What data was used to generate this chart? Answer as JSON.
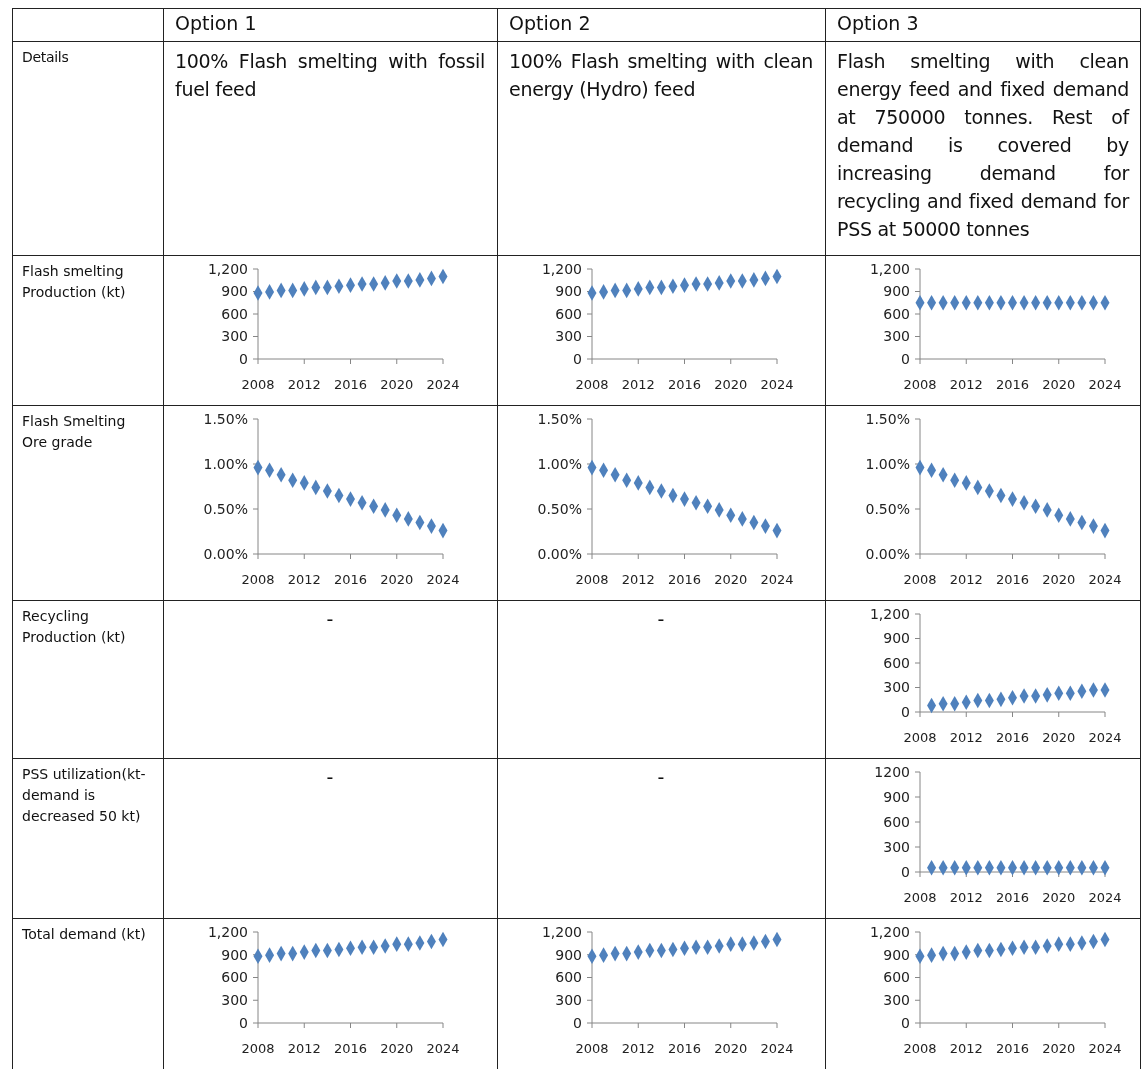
{
  "chart_data": [
    {
      "type": "other",
      "title": "Option 1"
    },
    {
      "type": "other",
      "title": "Option 2"
    },
    {
      "type": "other",
      "title": "Option 3"
    },
    {
      "type": "other",
      "title": "Details"
    },
    {
      "type": "other",
      "title": "100% Flash smelting with fossil fuel feed"
    },
    {
      "type": "other",
      "title": "100% Flash smelting with clean energy (Hydro) feed"
    },
    {
      "type": "other",
      "title": "Flash smelting with clean energy feed and fixed demand at 750000 tonnes. Rest of demand is covered by increasing demand for recycling and fixed demand for PSS at 50000 tonnes"
    },
    {
      "type": "other",
      "title": "Flash smelting Production (kt)"
    },
    {
      "type": "scatter",
      "x": [
        2008,
        2009,
        2010,
        2011,
        2012,
        2013,
        2014,
        2015,
        2016,
        2017,
        2018,
        2019,
        2020,
        2021,
        2022,
        2023,
        2024
      ],
      "values": [
        880,
        895,
        915,
        915,
        935,
        955,
        955,
        970,
        985,
        1000,
        1000,
        1015,
        1040,
        1040,
        1055,
        1075,
        1100
      ],
      "color": "#4f81bd",
      "marker": "diamond",
      "xlim": [
        2008,
        2024
      ],
      "xticks": [
        2008,
        2012,
        2016,
        2020,
        2024
      ],
      "ylim": [
        0,
        1200
      ],
      "yticks": [
        0,
        300,
        600,
        900,
        {
          "value": 1200,
          "label": "1,200"
        }
      ]
    },
    {
      "type": "scatter",
      "x": [
        2008,
        2009,
        2010,
        2011,
        2012,
        2013,
        2014,
        2015,
        2016,
        2017,
        2018,
        2019,
        2020,
        2021,
        2022,
        2023,
        2024
      ],
      "values": [
        880,
        895,
        915,
        915,
        935,
        955,
        955,
        970,
        985,
        1000,
        1000,
        1015,
        1040,
        1040,
        1055,
        1075,
        1100
      ],
      "color": "#4f81bd",
      "marker": "diamond",
      "xlim": [
        2008,
        2024
      ],
      "xticks": [
        2008,
        2012,
        2016,
        2020,
        2024
      ],
      "ylim": [
        0,
        1200
      ],
      "yticks": [
        0,
        300,
        600,
        900,
        {
          "value": 1200,
          "label": "1,200"
        }
      ]
    },
    {
      "type": "scatter",
      "x": [
        2008,
        2009,
        2010,
        2011,
        2012,
        2013,
        2014,
        2015,
        2016,
        2017,
        2018,
        2019,
        2020,
        2021,
        2022,
        2023,
        2024
      ],
      "values": [
        750,
        750,
        750,
        750,
        750,
        750,
        750,
        750,
        750,
        750,
        750,
        750,
        750,
        750,
        750,
        750,
        750
      ],
      "color": "#4f81bd",
      "marker": "diamond",
      "xlim": [
        2008,
        2024
      ],
      "xticks": [
        2008,
        2012,
        2016,
        2020,
        2024
      ],
      "ylim": [
        0,
        1200
      ],
      "yticks": [
        0,
        300,
        600,
        900,
        {
          "value": 1200,
          "label": "1,200"
        }
      ]
    },
    {
      "type": "other",
      "title": "Flash Smelting Ore grade"
    },
    {
      "type": "scatter",
      "x": [
        2008,
        2009,
        2010,
        2011,
        2012,
        2013,
        2014,
        2015,
        2016,
        2017,
        2018,
        2019,
        2020,
        2021,
        2022,
        2023,
        2024
      ],
      "values": [
        0.96,
        0.93,
        0.88,
        0.82,
        0.79,
        0.74,
        0.7,
        0.65,
        0.61,
        0.57,
        0.53,
        0.49,
        0.43,
        0.39,
        0.35,
        0.31,
        0.26
      ],
      "color": "#4f81bd",
      "marker": "diamond",
      "xlim": [
        2008,
        2024
      ],
      "xticks": [
        2008,
        2012,
        2016,
        2020,
        2024
      ],
      "ylim": [
        0,
        1.5
      ],
      "yticks": [
        {
          "value": 0,
          "label": "0.00%"
        },
        {
          "value": 0.5,
          "label": "0.50%"
        },
        {
          "value": 1,
          "label": "1.00%"
        },
        {
          "value": 1.5,
          "label": "1.50%"
        }
      ]
    },
    {
      "type": "scatter",
      "x": [
        2008,
        2009,
        2010,
        2011,
        2012,
        2013,
        2014,
        2015,
        2016,
        2017,
        2018,
        2019,
        2020,
        2021,
        2022,
        2023,
        2024
      ],
      "values": [
        0.96,
        0.93,
        0.88,
        0.82,
        0.79,
        0.74,
        0.7,
        0.65,
        0.61,
        0.57,
        0.53,
        0.49,
        0.43,
        0.39,
        0.35,
        0.31,
        0.26
      ],
      "color": "#4f81bd",
      "marker": "diamond",
      "xlim": [
        2008,
        2024
      ],
      "xticks": [
        2008,
        2012,
        2016,
        2020,
        2024
      ],
      "ylim": [
        0,
        1.5
      ],
      "yticks": [
        {
          "value": 0,
          "label": "0.00%"
        },
        {
          "value": 0.5,
          "label": "0.50%"
        },
        {
          "value": 1,
          "label": "1.00%"
        },
        {
          "value": 1.5,
          "label": "1.50%"
        }
      ]
    },
    {
      "type": "scatter",
      "x": [
        2008,
        2009,
        2010,
        2011,
        2012,
        2013,
        2014,
        2015,
        2016,
        2017,
        2018,
        2019,
        2020,
        2021,
        2022,
        2023,
        2024
      ],
      "values": [
        0.96,
        0.93,
        0.88,
        0.82,
        0.79,
        0.74,
        0.7,
        0.65,
        0.61,
        0.57,
        0.53,
        0.49,
        0.43,
        0.39,
        0.35,
        0.31,
        0.26
      ],
      "color": "#4f81bd",
      "marker": "diamond",
      "xlim": [
        2008,
        2024
      ],
      "xticks": [
        2008,
        2012,
        2016,
        2020,
        2024
      ],
      "ylim": [
        0,
        1.5
      ],
      "yticks": [
        {
          "value": 0,
          "label": "0.00%"
        },
        {
          "value": 0.5,
          "label": "0.50%"
        },
        {
          "value": 1,
          "label": "1.00%"
        },
        {
          "value": 1.5,
          "label": "1.50%"
        }
      ]
    },
    {
      "type": "other",
      "title": "Recycling Production (kt)"
    },
    {
      "type": "other",
      "title": "-"
    },
    {
      "type": "other",
      "title": "-"
    },
    {
      "type": "scatter",
      "x": [
        2009,
        2010,
        2011,
        2012,
        2013,
        2014,
        2015,
        2016,
        2017,
        2018,
        2019,
        2020,
        2021,
        2022,
        2023,
        2024
      ],
      "values": [
        80,
        100,
        100,
        120,
        140,
        140,
        155,
        175,
        195,
        195,
        210,
        230,
        230,
        255,
        270,
        270
      ],
      "color": "#4f81bd",
      "marker": "diamond",
      "xlim": [
        2008,
        2024
      ],
      "xticks": [
        2008,
        2012,
        2016,
        2020,
        2024
      ],
      "ylim": [
        0,
        1200
      ],
      "yticks": [
        0,
        300,
        600,
        900,
        {
          "value": 1200,
          "label": "1,200"
        }
      ]
    },
    {
      "type": "other",
      "title": "PSS utilization(kt-demand is decreased 50 kt)"
    },
    {
      "type": "other",
      "title": "-"
    },
    {
      "type": "other",
      "title": "-"
    },
    {
      "type": "scatter",
      "x": [
        2009,
        2010,
        2011,
        2012,
        2013,
        2014,
        2015,
        2016,
        2017,
        2018,
        2019,
        2020,
        2021,
        2022,
        2023,
        2024
      ],
      "values": [
        50,
        50,
        50,
        50,
        50,
        50,
        50,
        50,
        50,
        50,
        50,
        50,
        50,
        50,
        50,
        50
      ],
      "color": "#4f81bd",
      "marker": "diamond",
      "xlim": [
        2008,
        2024
      ],
      "xticks": [
        2008,
        2012,
        2016,
        2020,
        2024
      ],
      "ylim": [
        0,
        1200
      ],
      "yticks": [
        0,
        300,
        600,
        900,
        1200
      ]
    },
    {
      "type": "other",
      "title": "Total demand (kt)"
    },
    {
      "type": "scatter",
      "x": [
        2008,
        2009,
        2010,
        2011,
        2012,
        2013,
        2014,
        2015,
        2016,
        2017,
        2018,
        2019,
        2020,
        2021,
        2022,
        2023,
        2024
      ],
      "values": [
        880,
        895,
        915,
        915,
        935,
        955,
        955,
        970,
        985,
        1000,
        1000,
        1015,
        1040,
        1040,
        1055,
        1075,
        1100
      ],
      "color": "#4f81bd",
      "marker": "diamond",
      "xlim": [
        2008,
        2024
      ],
      "xticks": [
        2008,
        2012,
        2016,
        2020,
        2024
      ],
      "ylim": [
        0,
        1200
      ],
      "yticks": [
        0,
        300,
        600,
        900,
        {
          "value": 1200,
          "label": "1,200"
        }
      ]
    },
    {
      "type": "scatter",
      "x": [
        2008,
        2009,
        2010,
        2011,
        2012,
        2013,
        2014,
        2015,
        2016,
        2017,
        2018,
        2019,
        2020,
        2021,
        2022,
        2023,
        2024
      ],
      "values": [
        880,
        895,
        915,
        915,
        935,
        955,
        955,
        970,
        985,
        1000,
        1000,
        1015,
        1040,
        1040,
        1055,
        1075,
        1100
      ],
      "color": "#4f81bd",
      "marker": "diamond",
      "xlim": [
        2008,
        2024
      ],
      "xticks": [
        2008,
        2012,
        2016,
        2020,
        2024
      ],
      "ylim": [
        0,
        1200
      ],
      "yticks": [
        0,
        300,
        600,
        900,
        {
          "value": 1200,
          "label": "1,200"
        }
      ]
    },
    {
      "type": "scatter",
      "x": [
        2008,
        2009,
        2010,
        2011,
        2012,
        2013,
        2014,
        2015,
        2016,
        2017,
        2018,
        2019,
        2020,
        2021,
        2022,
        2023,
        2024
      ],
      "values": [
        880,
        895,
        915,
        915,
        935,
        955,
        955,
        970,
        985,
        1000,
        1000,
        1015,
        1040,
        1040,
        1055,
        1075,
        1100
      ],
      "color": "#4f81bd",
      "marker": "diamond",
      "xlim": [
        2008,
        2024
      ],
      "xticks": [
        2008,
        2012,
        2016,
        2020,
        2024
      ],
      "ylim": [
        0,
        1200
      ],
      "yticks": [
        0,
        300,
        600,
        900,
        {
          "value": 1200,
          "label": "1,200"
        }
      ]
    }
  ]
}
